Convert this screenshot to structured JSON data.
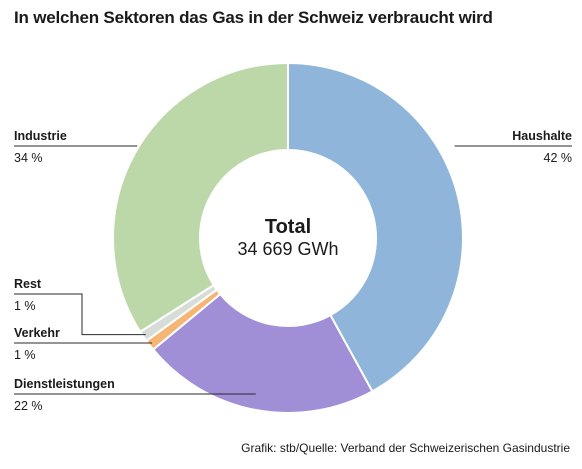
{
  "title": "In welchen Sektoren das Gas in der Schweiz verbraucht wird",
  "source": "Grafik: stb/Quelle: Verband der Schweizerischen Gasindustrie",
  "chart_data": {
    "type": "pie",
    "donut": true,
    "center_label": "Total",
    "center_value": "34 669 GWh",
    "slices": [
      {
        "name": "Haushalte",
        "value": 42,
        "value_label": "42 %",
        "color": "#8fb5da"
      },
      {
        "name": "Dienstleistungen",
        "value": 22,
        "value_label": "22 %",
        "color": "#a08fd6"
      },
      {
        "name": "Verkehr",
        "value": 1,
        "value_label": "1 %",
        "color": "#f5b574"
      },
      {
        "name": "Rest",
        "value": 1,
        "value_label": "1 %",
        "color": "#d8dcd8"
      },
      {
        "name": "Industrie",
        "value": 34,
        "value_label": "34 %",
        "color": "#bcd8a9"
      }
    ]
  }
}
